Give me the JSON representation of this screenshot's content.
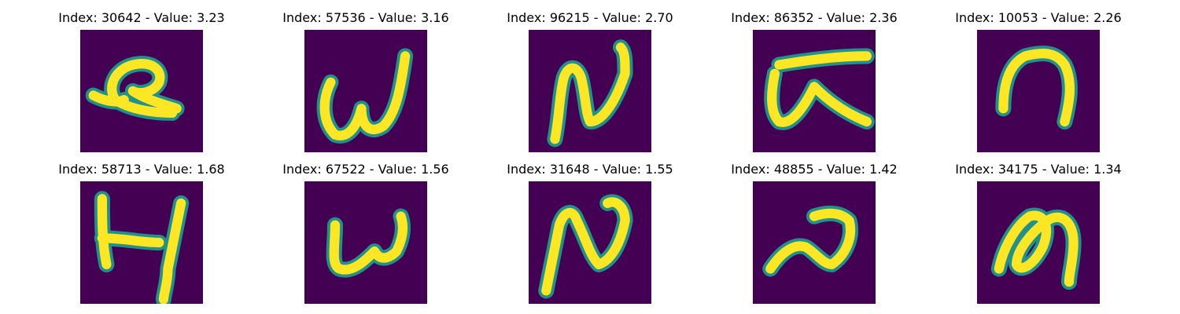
{
  "colors": {
    "background": "#440154",
    "stroke": "#fde725",
    "edge": "#21918c"
  },
  "panels": [
    {
      "index": "30642",
      "value": "3.23",
      "glyph": "q-loop"
    },
    {
      "index": "57536",
      "value": "3.16",
      "glyph": "w"
    },
    {
      "index": "96215",
      "value": "2.70",
      "glyph": "n-hook"
    },
    {
      "index": "86352",
      "value": "2.36",
      "glyph": "alpha-bar"
    },
    {
      "index": "10053",
      "value": "2.26",
      "glyph": "n-arch"
    },
    {
      "index": "58713",
      "value": "1.68",
      "glyph": "h"
    },
    {
      "index": "67522",
      "value": "1.56",
      "glyph": "w-flat"
    },
    {
      "index": "31648",
      "value": "1.55",
      "glyph": "n-tall"
    },
    {
      "index": "48855",
      "value": "1.42",
      "glyph": "n-slant"
    },
    {
      "index": "34175",
      "value": "1.34",
      "glyph": "m-loop"
    }
  ]
}
